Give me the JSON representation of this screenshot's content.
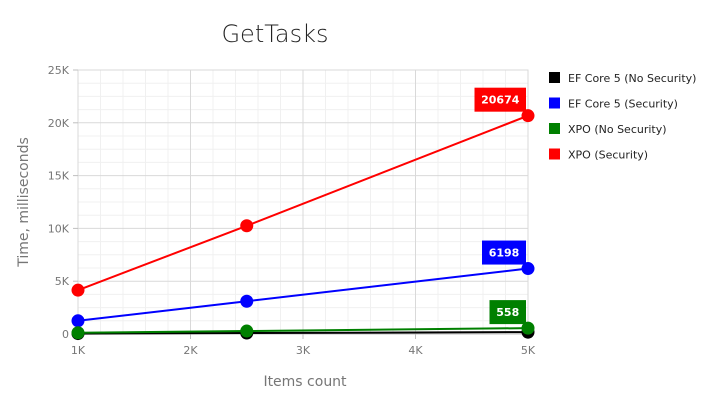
{
  "chart_data": {
    "type": "line",
    "title": "GetTasks",
    "xlabel": "Items count",
    "ylabel": "Time, milliseconds",
    "x": [
      1000,
      2500,
      5000
    ],
    "xlim": [
      1000,
      5000
    ],
    "ylim": [
      0,
      25000
    ],
    "x_ticks": [
      {
        "value": 1000,
        "label": "1K"
      },
      {
        "value": 2000,
        "label": "2K"
      },
      {
        "value": 3000,
        "label": "3K"
      },
      {
        "value": 4000,
        "label": "4K"
      },
      {
        "value": 5000,
        "label": "5K"
      }
    ],
    "y_ticks": [
      {
        "value": 0,
        "label": "0"
      },
      {
        "value": 5000,
        "label": "5K"
      },
      {
        "value": 10000,
        "label": "10K"
      },
      {
        "value": 15000,
        "label": "15K"
      },
      {
        "value": 20000,
        "label": "20K"
      },
      {
        "value": 25000,
        "label": "25K"
      }
    ],
    "grid": true,
    "legend_position": "right",
    "series": [
      {
        "name": "EF Core 5 (No Security)",
        "color": "#000000",
        "values": [
          40,
          90,
          180
        ]
      },
      {
        "name": "EF Core 5 (Security)",
        "color": "#0000ff",
        "values": [
          1250,
          3100,
          6198
        ],
        "label_last": "6198"
      },
      {
        "name": "XPO (No Security)",
        "color": "#008000",
        "values": [
          120,
          280,
          558
        ],
        "label_last": "558"
      },
      {
        "name": "XPO (Security)",
        "color": "#ff0000",
        "values": [
          4150,
          10250,
          20674
        ],
        "label_last": "20674"
      }
    ]
  }
}
